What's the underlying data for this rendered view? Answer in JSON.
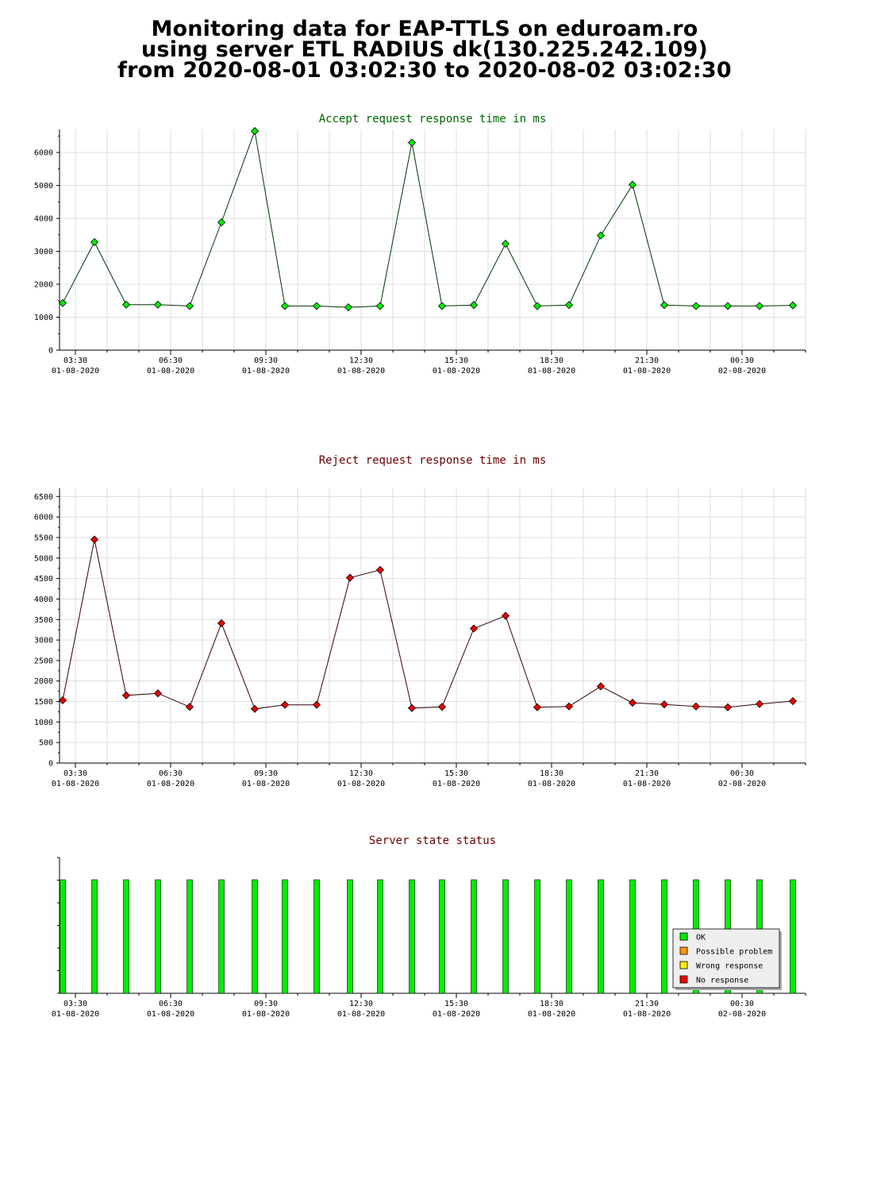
{
  "header": {
    "line1": "Monitoring data for EAP-TTLS on eduroam.ro",
    "line2": "using server ETL RADIUS dk(130.225.242.109)",
    "line3": "from 2020-08-01 03:02:30 to 2020-08-02 03:02:30"
  },
  "colors": {
    "ok": "#00ee00",
    "possible_problem": "#ff9900",
    "wrong_response": "#ffee00",
    "no_response": "#ee0000",
    "accept_line": "#003300",
    "reject_line": "#330000",
    "accept_title": "#006600",
    "reject_title": "#660000",
    "grid": "#dddddd"
  },
  "chart_data": [
    {
      "type": "line",
      "title": "Accept request response time in ms",
      "xlabel": "",
      "ylabel": "",
      "x_tick_labels": [
        {
          "time": "03:30",
          "date": "01-08-2020"
        },
        {
          "time": "06:30",
          "date": "01-08-2020"
        },
        {
          "time": "09:30",
          "date": "01-08-2020"
        },
        {
          "time": "12:30",
          "date": "01-08-2020"
        },
        {
          "time": "15:30",
          "date": "01-08-2020"
        },
        {
          "time": "18:30",
          "date": "01-08-2020"
        },
        {
          "time": "21:30",
          "date": "01-08-2020"
        },
        {
          "time": "00:30",
          "date": "02-08-2020"
        }
      ],
      "y_ticks": [
        0,
        1000,
        2000,
        3000,
        4000,
        5000,
        6000
      ],
      "ylim": [
        0,
        6700
      ],
      "x_hours_range": [
        3.0,
        26.5
      ],
      "grid": true,
      "series": [
        {
          "marker_color": "#00ee00",
          "x_hours": [
            3.1,
            4.1,
            5.1,
            6.1,
            7.1,
            8.1,
            9.15,
            10.1,
            11.1,
            12.1,
            13.1,
            14.1,
            15.05,
            16.05,
            17.05,
            18.05,
            19.05,
            20.05,
            21.05,
            22.05,
            23.05,
            24.05,
            25.05,
            26.1
          ],
          "values": [
            1430,
            3280,
            1380,
            1380,
            1340,
            3880,
            6650,
            1340,
            1340,
            1300,
            1340,
            6300,
            1340,
            1370,
            3230,
            1340,
            1370,
            3480,
            5020,
            1370,
            1340,
            1340,
            1340,
            1360
          ]
        }
      ]
    },
    {
      "type": "line",
      "title": "Reject request response time in ms",
      "xlabel": "",
      "ylabel": "",
      "x_tick_labels": [
        {
          "time": "03:30",
          "date": "01-08-2020"
        },
        {
          "time": "06:30",
          "date": "01-08-2020"
        },
        {
          "time": "09:30",
          "date": "01-08-2020"
        },
        {
          "time": "12:30",
          "date": "01-08-2020"
        },
        {
          "time": "15:30",
          "date": "01-08-2020"
        },
        {
          "time": "18:30",
          "date": "01-08-2020"
        },
        {
          "time": "21:30",
          "date": "01-08-2020"
        },
        {
          "time": "00:30",
          "date": "02-08-2020"
        }
      ],
      "y_ticks": [
        0,
        500,
        1000,
        1500,
        2000,
        2500,
        3000,
        3500,
        4000,
        4500,
        5000,
        5500,
        6000,
        6500
      ],
      "ylim": [
        0,
        6700
      ],
      "x_hours_range": [
        3.0,
        26.5
      ],
      "grid": true,
      "series": [
        {
          "marker_color": "#ee0000",
          "x_hours": [
            3.1,
            4.1,
            5.1,
            6.1,
            7.1,
            8.1,
            9.15,
            10.1,
            11.1,
            12.15,
            13.1,
            14.1,
            15.05,
            16.05,
            17.05,
            18.05,
            19.05,
            20.05,
            21.05,
            22.05,
            23.05,
            24.05,
            25.05,
            26.1
          ],
          "values": [
            1530,
            5450,
            1650,
            1700,
            1370,
            3410,
            1320,
            1420,
            1420,
            4520,
            4710,
            1340,
            1370,
            3280,
            3590,
            1360,
            1380,
            1870,
            1470,
            1430,
            1380,
            1360,
            1440,
            1510
          ]
        }
      ]
    },
    {
      "type": "bar",
      "title": "Server state status",
      "xlabel": "",
      "ylabel": "",
      "x_tick_labels": [
        {
          "time": "03:30",
          "date": "01-08-2020"
        },
        {
          "time": "06:30",
          "date": "01-08-2020"
        },
        {
          "time": "09:30",
          "date": "01-08-2020"
        },
        {
          "time": "12:30",
          "date": "01-08-2020"
        },
        {
          "time": "15:30",
          "date": "01-08-2020"
        },
        {
          "time": "18:30",
          "date": "01-08-2020"
        },
        {
          "time": "21:30",
          "date": "01-08-2020"
        },
        {
          "time": "00:30",
          "date": "02-08-2020"
        }
      ],
      "x_hours_range": [
        3.0,
        26.5
      ],
      "grid": false,
      "legend_position": "bottom-right",
      "legend": [
        {
          "label": "OK",
          "color": "#00ee00"
        },
        {
          "label": "Possible problem",
          "color": "#ff9900"
        },
        {
          "label": "Wrong response",
          "color": "#ffee00"
        },
        {
          "label": "No response",
          "color": "#ee0000"
        }
      ],
      "series": [
        {
          "name": "OK",
          "color": "#00ee00",
          "x_hours": [
            3.1,
            4.1,
            5.1,
            6.1,
            7.1,
            8.1,
            9.15,
            10.1,
            11.1,
            12.15,
            13.1,
            14.1,
            15.05,
            16.05,
            17.05,
            18.05,
            19.05,
            20.05,
            21.05,
            22.05,
            23.05,
            24.05,
            25.05,
            26.1
          ],
          "values": [
            1,
            1,
            1,
            1,
            1,
            1,
            1,
            1,
            1,
            1,
            1,
            1,
            1,
            1,
            1,
            1,
            1,
            1,
            1,
            1,
            1,
            1,
            1,
            1
          ]
        }
      ]
    }
  ]
}
